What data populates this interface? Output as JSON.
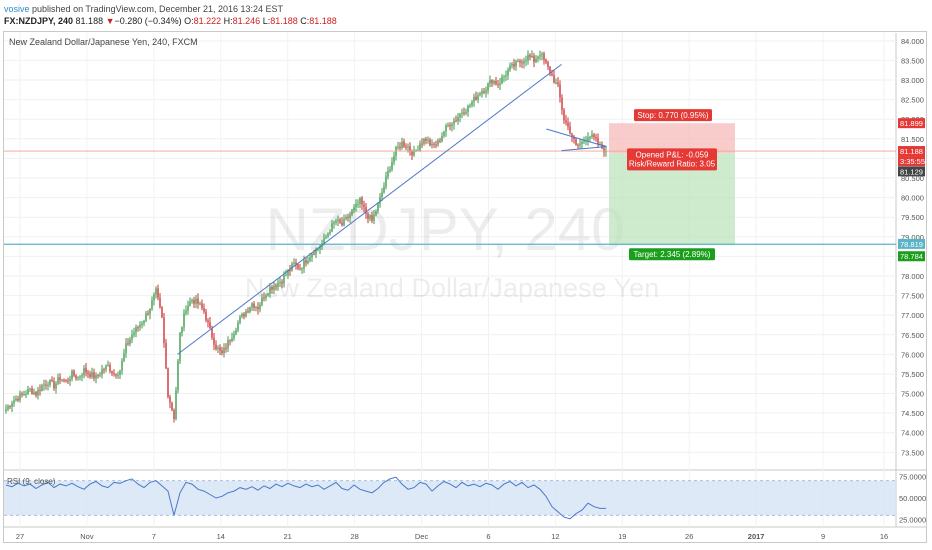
{
  "header": {
    "user": "vosive",
    "published_text": "published on TradingView.com, December 21, 2016 13:24 EST",
    "symbol": "FX:NZDJPY, 240",
    "arrow": "▼",
    "change": "−0.280 (−0.34%)",
    "o_label": "O:",
    "o_value": "81.222",
    "h_label": "H:",
    "h_value": "81.246",
    "l_label": "L:",
    "l_value": "81.188",
    "c_label": "C:",
    "c_value": "81.188",
    "last": "81.188"
  },
  "pane_title": "New Zealand Dollar/Japanese Yen, 240, FXCM",
  "watermark": {
    "line1": "NZDJPY, 240",
    "line2": "New Zealand Dollar/Japanese Yen"
  },
  "colors": {
    "up": "#3a9a4a",
    "down": "#cc3333",
    "rsi": "#4a78c8",
    "trend": "#4a78c8",
    "level": "#5ab4c8"
  },
  "chart_data": {
    "type": "candlestick",
    "title": "New Zealand Dollar/Japanese Yen, 240, FXCM",
    "ylim": [
      73.1,
      84.2
    ],
    "yticks": [
      "84.000",
      "83.500",
      "83.000",
      "82.500",
      "82.000",
      "81.500",
      "81.000",
      "80.500",
      "80.000",
      "79.500",
      "79.000",
      "78.500",
      "78.000",
      "77.500",
      "77.000",
      "76.500",
      "76.000",
      "75.500",
      "75.000",
      "74.500",
      "74.000",
      "73.500"
    ],
    "xticks": [
      "27",
      "Nov",
      "7",
      "14",
      "21",
      "28",
      "Dec",
      "6",
      "12",
      "19",
      "26",
      "2017",
      "9",
      "16"
    ],
    "close_path": [
      74.6,
      74.8,
      74.9,
      75.0,
      75.1,
      75.0,
      75.2,
      75.3,
      75.2,
      75.4,
      75.3,
      75.5,
      75.4,
      75.6,
      75.5,
      75.4,
      75.6,
      75.7,
      75.5,
      75.6,
      76.2,
      76.5,
      76.7,
      76.9,
      77.2,
      77.6,
      76.9,
      75.0,
      74.4,
      76.5,
      77.2,
      77.4,
      77.3,
      77.1,
      76.6,
      76.2,
      76.0,
      76.3,
      76.6,
      76.9,
      77.1,
      77.3,
      77.2,
      77.5,
      77.7,
      77.8,
      77.9,
      78.1,
      78.3,
      78.2,
      78.4,
      78.6,
      78.7,
      78.9,
      79.2,
      79.4,
      79.3,
      79.5,
      79.7,
      79.9,
      79.6,
      79.4,
      79.8,
      80.3,
      80.8,
      81.2,
      81.4,
      81.3,
      81.1,
      81.4,
      81.5,
      81.3,
      81.4,
      81.7,
      81.9,
      82.0,
      82.2,
      82.3,
      82.5,
      82.7,
      82.8,
      83.0,
      82.9,
      83.1,
      83.3,
      83.4,
      83.5,
      83.6,
      83.5,
      83.7,
      83.4,
      83.1,
      82.8,
      82.0,
      81.7,
      81.3,
      81.4,
      81.6,
      81.5,
      81.3,
      81.2
    ],
    "rsi": {
      "label": "RSI (9, close)",
      "ylim": [
        20,
        80
      ],
      "band": [
        30,
        70
      ],
      "yticks": [
        "75.0000",
        "50.0000",
        "25.0000"
      ],
      "values": [
        65,
        63,
        67,
        64,
        66,
        61,
        65,
        68,
        62,
        66,
        64,
        67,
        63,
        60,
        66,
        69,
        64,
        62,
        68,
        67,
        70,
        72,
        66,
        62,
        68,
        70,
        64,
        58,
        30,
        56,
        68,
        66,
        60,
        58,
        54,
        50,
        52,
        56,
        58,
        62,
        60,
        63,
        59,
        64,
        61,
        66,
        63,
        67,
        64,
        62,
        66,
        63,
        65,
        60,
        64,
        68,
        61,
        59,
        65,
        60,
        58,
        56,
        61,
        68,
        72,
        74,
        66,
        60,
        62,
        68,
        66,
        58,
        64,
        69,
        66,
        62,
        68,
        64,
        66,
        63,
        67,
        65,
        60,
        66,
        69,
        64,
        68,
        62,
        65,
        60,
        52,
        40,
        34,
        28,
        26,
        32,
        36,
        44,
        40,
        38,
        38
      ]
    },
    "trendlines": [
      {
        "from": [
          76.0,
          0.1945
        ],
        "to": [
          83.4,
          0.625
        ]
      },
      {
        "from": [
          81.75,
          0.608
        ],
        "to": [
          81.3,
          0.675
        ]
      },
      {
        "from": [
          81.2,
          0.625
        ],
        "to": [
          81.3,
          0.675
        ]
      }
    ],
    "levels": [
      {
        "price": 78.81,
        "label": "78.819"
      }
    ],
    "position": {
      "stop_label": "Stop: 0.770 (0.95%)",
      "pnl_label": "Opened P&L: -0.059",
      "rr_label": "Risk/Reward Ratio: 3.05",
      "target_label": "Target: 2.345 (2.89%)",
      "entry": 81.129,
      "stop": 81.899,
      "target": 78.784
    },
    "price_tags": [
      {
        "label": "81.899",
        "color": "#e53935"
      },
      {
        "label": "81.188",
        "color": "#e53935"
      },
      {
        "label": "3:35:55",
        "color": "#e53935"
      },
      {
        "label": "81.129",
        "color": "#444444"
      },
      {
        "label": "78.819",
        "color": "#5ab4c8"
      },
      {
        "label": "78.784",
        "color": "#1b9e1b"
      }
    ]
  }
}
